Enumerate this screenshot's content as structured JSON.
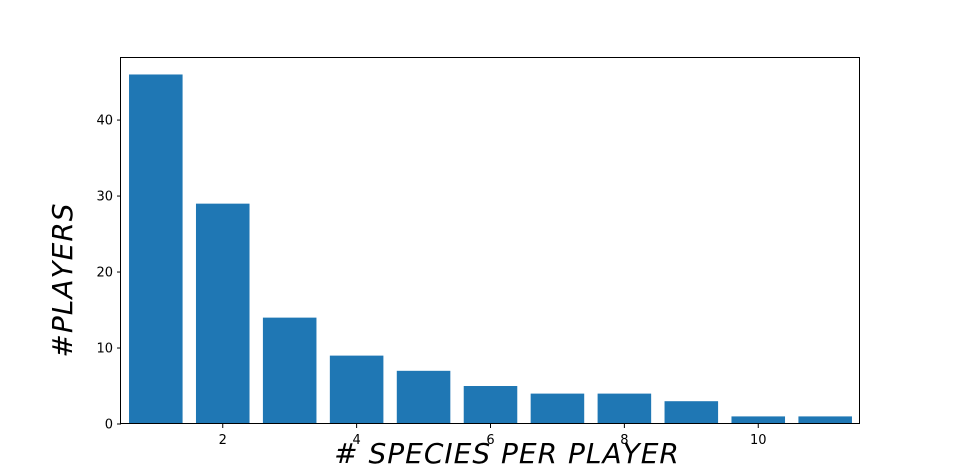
{
  "chart_data": {
    "type": "bar",
    "title": "",
    "xlabel": "# SPECIES PER PLAYER",
    "ylabel": "#PLAYERS",
    "x": [
      1,
      2,
      3,
      4,
      5,
      6,
      7,
      8,
      9,
      10,
      11
    ],
    "values": [
      46,
      29,
      14,
      9,
      7,
      5,
      4,
      4,
      3,
      1,
      1
    ],
    "xticks": [
      2,
      4,
      6,
      8,
      10
    ],
    "yticks": [
      0,
      10,
      20,
      30,
      40
    ],
    "xlim": [
      0.48,
      11.52
    ],
    "ylim": [
      0,
      48.3
    ],
    "bar_width": 0.8,
    "bar_color": "#1f77b4",
    "grid": false,
    "legend": "none"
  }
}
